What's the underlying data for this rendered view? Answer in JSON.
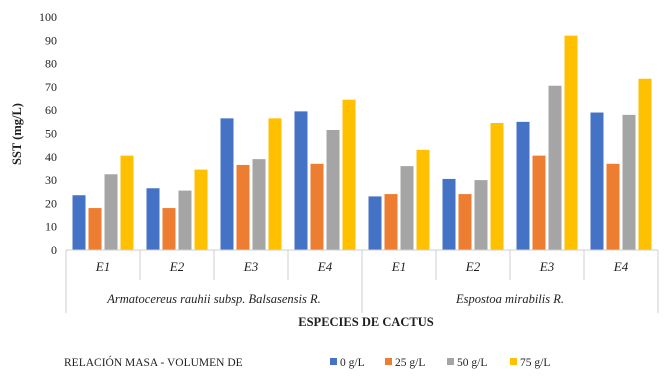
{
  "chart_data": {
    "type": "bar",
    "categories": [
      "E1",
      "E2",
      "E3",
      "E4",
      "E1",
      "E2",
      "E3",
      "E4"
    ],
    "groups": [
      {
        "label": "Armatocereus rauhii subsp. Balsasensis R.",
        "categories": [
          "E1",
          "E2",
          "E3",
          "E4"
        ]
      },
      {
        "label": "Espostoa mirabilis R.",
        "categories": [
          "E1",
          "E2",
          "E3",
          "E4"
        ]
      }
    ],
    "series": [
      {
        "name": "0 g/L",
        "color": "#4472C4",
        "values": [
          23.5,
          26.5,
          56.5,
          59.5,
          23,
          30.5,
          55,
          59
        ]
      },
      {
        "name": "25 g/L",
        "color": "#ED7D31",
        "values": [
          18,
          18,
          36.5,
          37,
          24,
          24,
          40.5,
          37
        ]
      },
      {
        "name": "50 g/L",
        "color": "#A5A5A5",
        "values": [
          32.5,
          25.5,
          39,
          51.5,
          36,
          30,
          70.5,
          58
        ]
      },
      {
        "name": "75 g/L",
        "color": "#FFC000",
        "values": [
          40.5,
          34.5,
          56.5,
          64.5,
          43,
          54.5,
          92,
          73.5
        ]
      }
    ],
    "yticks": [
      0,
      10,
      20,
      30,
      40,
      50,
      60,
      70,
      80,
      90,
      100
    ],
    "ylim": [
      0,
      100
    ],
    "ylabel": "SST (mg/L)",
    "xlabel": "ESPECIES DE CACTUS",
    "legend_title": "RELACIÓN MASA - VOLUMEN DE",
    "legend_position": "bottom",
    "grid": false
  }
}
